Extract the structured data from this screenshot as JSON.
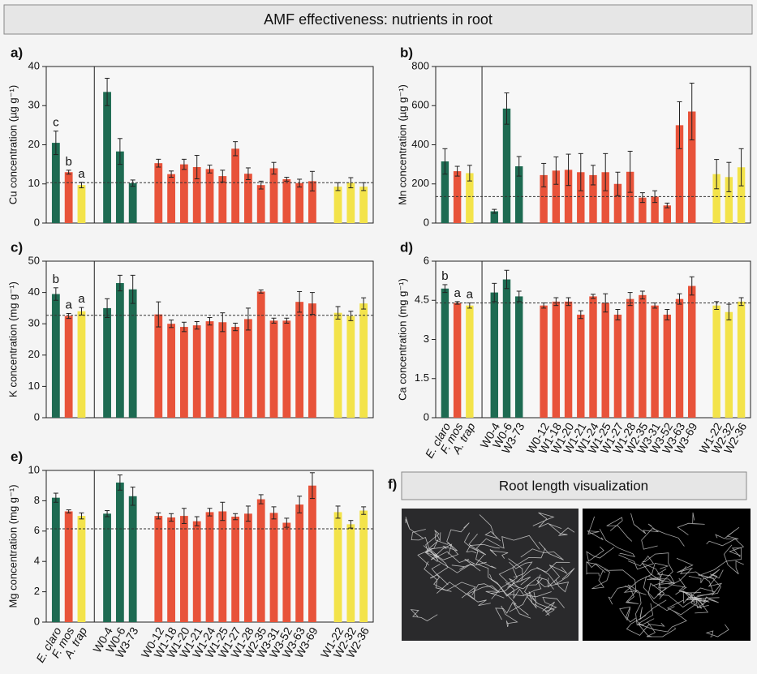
{
  "header": {
    "title": "AMF effectiveness: nutrients in root"
  },
  "chart_data": [
    {
      "type": "bar",
      "panel": "a)",
      "y_label": "Cu concentration (µg g⁻¹)",
      "ylim": [
        0,
        40
      ],
      "yticks": [
        0,
        10,
        20,
        30,
        40
      ],
      "reference": 10.3,
      "values": [
        20.5,
        13,
        9.7,
        33.5,
        18.3,
        10.2,
        15.3,
        12.5,
        15,
        14.3,
        13.8,
        12,
        19,
        12.6,
        9.7,
        14,
        11.2,
        10.2,
        10.7,
        9.3,
        10.3,
        9.3
      ],
      "errors": [
        3,
        0.5,
        0.7,
        3.5,
        3.3,
        0.8,
        1,
        0.8,
        1.3,
        3,
        1,
        1.5,
        1.8,
        1.5,
        1,
        1.5,
        0.5,
        1,
        2.5,
        1,
        1.3,
        1
      ],
      "letters": [
        "c",
        "b",
        "a"
      ],
      "colors": [
        "#1e6b52",
        "#e8533a",
        "#f3e34a",
        "#1e6b52",
        "#1e6b52",
        "#1e6b52",
        "#e8533a",
        "#e8533a",
        "#e8533a",
        "#e8533a",
        "#e8533a",
        "#e8533a",
        "#e8533a",
        "#e8533a",
        "#e8533a",
        "#e8533a",
        "#e8533a",
        "#e8533a",
        "#e8533a",
        "#f3e34a",
        "#f3e34a",
        "#f3e34a"
      ]
    },
    {
      "type": "bar",
      "panel": "b)",
      "y_label": "Mn concentration (µg g⁻¹)",
      "ylim": [
        0,
        800
      ],
      "yticks": [
        0,
        200,
        400,
        600,
        800
      ],
      "reference": 135,
      "values": [
        315,
        265,
        255,
        60,
        585,
        290,
        245,
        268,
        272,
        260,
        245,
        260,
        200,
        262,
        130,
        135,
        90,
        500,
        570,
        250,
        235,
        285
      ],
      "errors": [
        65,
        25,
        40,
        10,
        80,
        50,
        60,
        70,
        80,
        95,
        50,
        95,
        60,
        105,
        25,
        30,
        12,
        120,
        145,
        75,
        75,
        95
      ],
      "colors": [
        "#1e6b52",
        "#e8533a",
        "#f3e34a",
        "#1e6b52",
        "#1e6b52",
        "#1e6b52",
        "#e8533a",
        "#e8533a",
        "#e8533a",
        "#e8533a",
        "#e8533a",
        "#e8533a",
        "#e8533a",
        "#e8533a",
        "#e8533a",
        "#e8533a",
        "#e8533a",
        "#e8533a",
        "#e8533a",
        "#f3e34a",
        "#f3e34a",
        "#f3e34a"
      ]
    },
    {
      "type": "bar",
      "panel": "c)",
      "y_label": "K concentration (mg g⁻¹)",
      "ylim": [
        0,
        50
      ],
      "yticks": [
        0,
        10,
        20,
        30,
        40,
        50
      ],
      "reference": 32.7,
      "values": [
        39.5,
        32.5,
        34,
        35,
        43,
        41,
        33,
        30,
        29,
        29.5,
        30.8,
        30.5,
        29,
        31.5,
        40.3,
        31,
        31,
        37,
        36.5,
        33.5,
        32.5,
        36.5
      ],
      "errors": [
        2,
        0.8,
        1.2,
        3,
        2.5,
        4.5,
        4,
        1.2,
        1.5,
        1.2,
        1.2,
        3,
        1.2,
        3.5,
        0.5,
        0.8,
        0.8,
        3.3,
        3.5,
        2,
        1.5,
        1.8
      ],
      "letters": [
        "b",
        "a",
        "a"
      ],
      "colors": [
        "#1e6b52",
        "#e8533a",
        "#f3e34a",
        "#1e6b52",
        "#1e6b52",
        "#1e6b52",
        "#e8533a",
        "#e8533a",
        "#e8533a",
        "#e8533a",
        "#e8533a",
        "#e8533a",
        "#e8533a",
        "#e8533a",
        "#e8533a",
        "#e8533a",
        "#e8533a",
        "#e8533a",
        "#e8533a",
        "#f3e34a",
        "#f3e34a",
        "#f3e34a"
      ]
    },
    {
      "type": "bar",
      "panel": "d)",
      "y_label": "Ca concentration (mg g⁻¹)",
      "ylim": [
        0,
        6
      ],
      "yticks": [
        0,
        1.5,
        3,
        4.5,
        6
      ],
      "reference": 4.4,
      "categories": [
        "E. claro",
        "F. mos",
        "A. trap",
        "W0-4",
        "W0-6",
        "W3-73",
        "W0-12",
        "W1-18",
        "W1-20",
        "W1-21",
        "W1-24",
        "W1-25",
        "W1-27",
        "W1-28",
        "W2-35",
        "W3-31",
        "W3-52",
        "W3-63",
        "W3-69",
        "W1-22",
        "W2-32",
        "W2-36"
      ],
      "values": [
        4.95,
        4.4,
        4.3,
        4.8,
        5.3,
        4.65,
        4.3,
        4.45,
        4.45,
        3.95,
        4.65,
        4.4,
        3.95,
        4.55,
        4.7,
        4.3,
        3.95,
        4.55,
        5.05,
        4.3,
        4.05,
        4.45
      ],
      "errors": [
        0.15,
        0.05,
        0.1,
        0.35,
        0.35,
        0.2,
        0.1,
        0.15,
        0.15,
        0.15,
        0.08,
        0.35,
        0.2,
        0.25,
        0.15,
        0.1,
        0.2,
        0.2,
        0.35,
        0.15,
        0.3,
        0.15
      ],
      "letters": [
        "b",
        "a",
        "a"
      ],
      "colors": [
        "#1e6b52",
        "#e8533a",
        "#f3e34a",
        "#1e6b52",
        "#1e6b52",
        "#1e6b52",
        "#e8533a",
        "#e8533a",
        "#e8533a",
        "#e8533a",
        "#e8533a",
        "#e8533a",
        "#e8533a",
        "#e8533a",
        "#e8533a",
        "#e8533a",
        "#e8533a",
        "#e8533a",
        "#e8533a",
        "#f3e34a",
        "#f3e34a",
        "#f3e34a"
      ]
    },
    {
      "type": "bar",
      "panel": "e)",
      "y_label": "Mg concentration (mg g⁻¹)",
      "ylim": [
        0,
        10
      ],
      "yticks": [
        0,
        2,
        4,
        6,
        8,
        10
      ],
      "reference": 6.15,
      "categories": [
        "E. claro",
        "F. mos",
        "A. trap",
        "W0-4",
        "W0-6",
        "W3-73",
        "W0-12",
        "W1-18",
        "W1-20",
        "W1-21",
        "W1-24",
        "W1-25",
        "W1-27",
        "W1-28",
        "W2-35",
        "W3-31",
        "W3-52",
        "W3-63",
        "W3-69",
        "W1-22",
        "W2-32",
        "W2-36"
      ],
      "values": [
        8.2,
        7.3,
        7,
        7.15,
        9.2,
        8.3,
        7,
        6.9,
        7,
        6.65,
        7.25,
        7.3,
        6.95,
        7.15,
        8.1,
        7.2,
        6.55,
        7.75,
        9,
        7.25,
        6.45,
        7.35
      ],
      "errors": [
        0.3,
        0.1,
        0.2,
        0.2,
        0.5,
        0.6,
        0.2,
        0.25,
        0.5,
        0.3,
        0.25,
        0.6,
        0.2,
        0.5,
        0.3,
        0.4,
        0.3,
        0.55,
        0.85,
        0.4,
        0.25,
        0.25
      ],
      "colors": [
        "#1e6b52",
        "#e8533a",
        "#f3e34a",
        "#1e6b52",
        "#1e6b52",
        "#1e6b52",
        "#e8533a",
        "#e8533a",
        "#e8533a",
        "#e8533a",
        "#e8533a",
        "#e8533a",
        "#e8533a",
        "#e8533a",
        "#e8533a",
        "#e8533a",
        "#e8533a",
        "#e8533a",
        "#e8533a",
        "#f3e34a",
        "#f3e34a",
        "#f3e34a"
      ]
    }
  ],
  "image_panel": {
    "panel": "f)",
    "title": "Root length visualization"
  }
}
